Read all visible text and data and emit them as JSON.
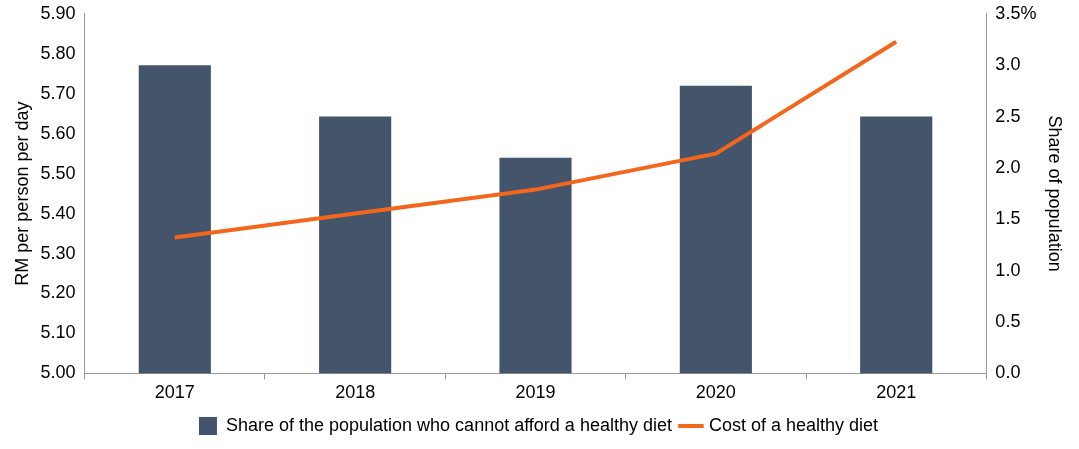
{
  "chart_data": {
    "type": "bar",
    "ylabel": "RM per person per day",
    "y2label": "Share of population",
    "categories": [
      "2017",
      "2018",
      "2019",
      "2020",
      "2021"
    ],
    "series": [
      {
        "name": "Share of the population who cannot afford a healthy diet",
        "axis": "y2",
        "color": "#44546a",
        "values": [
          3.0,
          2.5,
          2.1,
          2.8,
          2.5
        ]
      },
      {
        "name": "Cost of a healthy diet",
        "type": "line",
        "axis": "y",
        "color": "#f4661b",
        "values": [
          5.34,
          5.4,
          5.46,
          5.55,
          5.83
        ]
      }
    ],
    "ylim": [
      5.0,
      5.9
    ],
    "yticks": [
      {
        "value": 5.0,
        "label": "5.00"
      },
      {
        "value": 5.1,
        "label": "5.10"
      },
      {
        "value": 5.2,
        "label": "5.20"
      },
      {
        "value": 5.3,
        "label": "5.30"
      },
      {
        "value": 5.4,
        "label": "5.40"
      },
      {
        "value": 5.5,
        "label": "5.50"
      },
      {
        "value": 5.6,
        "label": "5.60"
      },
      {
        "value": 5.7,
        "label": "5.70"
      },
      {
        "value": 5.8,
        "label": "5.80"
      },
      {
        "value": 5.9,
        "label": "5.90"
      }
    ],
    "y2lim": [
      0,
      3.5
    ],
    "y2ticks": [
      {
        "value": 0,
        "label": "0.0"
      },
      {
        "value": 0.5,
        "label": "0.5"
      },
      {
        "value": 1,
        "label": "1.0"
      },
      {
        "value": 1.5,
        "label": "1.5"
      },
      {
        "value": 2,
        "label": "2.0"
      },
      {
        "value": 2.5,
        "label": "2.5"
      },
      {
        "value": 3,
        "label": "3.0"
      },
      {
        "value": 3.5,
        "label": "3.5%"
      }
    ],
    "legend": "bottom",
    "marker": "none"
  }
}
